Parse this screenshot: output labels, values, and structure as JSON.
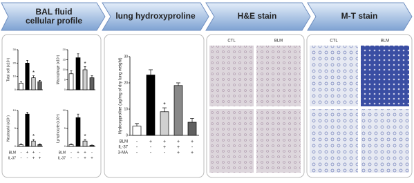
{
  "panels": [
    "BAL fluid cellular profile",
    "lung hydroxyproline",
    "H&E stain",
    "M-T stain"
  ],
  "images": {
    "he_labels": [
      "CTL",
      "BLM"
    ],
    "mt_labels": [
      "CTL",
      "BLM"
    ]
  },
  "chart_data": [
    {
      "type": "bar",
      "y_label": "Total cell (x10⁵)",
      "values": [
        5,
        20,
        9,
        6
      ],
      "errors": [
        1,
        2,
        1.5,
        1
      ],
      "stars": [
        null,
        null,
        "*",
        null
      ],
      "colors": [
        "#ffffff",
        "#000000",
        "#d0d0d0",
        "#606060"
      ],
      "ylim": [
        0,
        30
      ],
      "yticks": [
        0,
        10,
        20,
        30
      ]
    },
    {
      "type": "bar",
      "y_label": "Macrophage (x10⁵)",
      "values": [
        8,
        16,
        10,
        6
      ],
      "errors": [
        1.5,
        2,
        1.5,
        1
      ],
      "stars": [
        null,
        null,
        "*",
        null
      ],
      "colors": [
        "#ffffff",
        "#000000",
        "#d0d0d0",
        "#606060"
      ],
      "ylim": [
        0,
        20
      ],
      "yticks": [
        0,
        5,
        10,
        15,
        20
      ]
    },
    {
      "type": "bar",
      "y_label": "Neutrophil (x10⁴)",
      "values": [
        0.5,
        9,
        1.5,
        0.5
      ],
      "errors": [
        0.2,
        0.5,
        0.4,
        0.2
      ],
      "stars": [
        null,
        null,
        "*",
        null
      ],
      "colors": [
        "#ffffff",
        "#000000",
        "#d0d0d0",
        "#606060"
      ],
      "ylim": [
        0,
        10
      ],
      "yticks": [
        0,
        5,
        10
      ],
      "treatment_rows": [
        {
          "label": "BLM",
          "signs": [
            "-",
            "+",
            "+",
            "-"
          ]
        },
        {
          "label": "IL-37",
          "signs": [
            "-",
            "-",
            "+",
            "+"
          ]
        }
      ]
    },
    {
      "type": "bar",
      "y_label": "Lymphocyte (x10⁴)",
      "values": [
        0.5,
        8,
        1.5,
        0.3
      ],
      "errors": [
        0.2,
        1,
        0.4,
        0.1
      ],
      "stars": [
        null,
        null,
        "*",
        null
      ],
      "colors": [
        "#ffffff",
        "#000000",
        "#d0d0d0",
        "#606060"
      ],
      "ylim": [
        0,
        10
      ],
      "yticks": [
        0,
        5,
        10
      ],
      "treatment_rows": [
        {
          "label": "BLM",
          "signs": [
            "-",
            "+",
            "+",
            "-"
          ]
        },
        {
          "label": "IL-37",
          "signs": [
            "-",
            "-",
            "+",
            "+"
          ]
        }
      ]
    },
    {
      "type": "bar",
      "y_label": "Hydroxyproline (ug/mg of dry lung weight)",
      "values": [
        3.5,
        23,
        9,
        19,
        5
      ],
      "errors": [
        1,
        2,
        1.5,
        1,
        1.5
      ],
      "stars": [
        null,
        null,
        "*",
        null,
        null
      ],
      "colors": [
        "#ffffff",
        "#000000",
        "#d0d0d0",
        "#888888",
        "#606060"
      ],
      "ylim": [
        0,
        30
      ],
      "yticks": [
        0,
        10,
        20,
        30
      ],
      "treatment_rows": [
        {
          "label": "BLM",
          "signs": [
            "-",
            "+",
            "+",
            "+",
            "+"
          ]
        },
        {
          "label": "IL-37",
          "signs": [
            "-",
            "-",
            "+",
            "+",
            "-"
          ]
        },
        {
          "label": "3-MA",
          "signs": [
            "-",
            "-",
            "-",
            "+",
            "+"
          ]
        }
      ]
    }
  ]
}
